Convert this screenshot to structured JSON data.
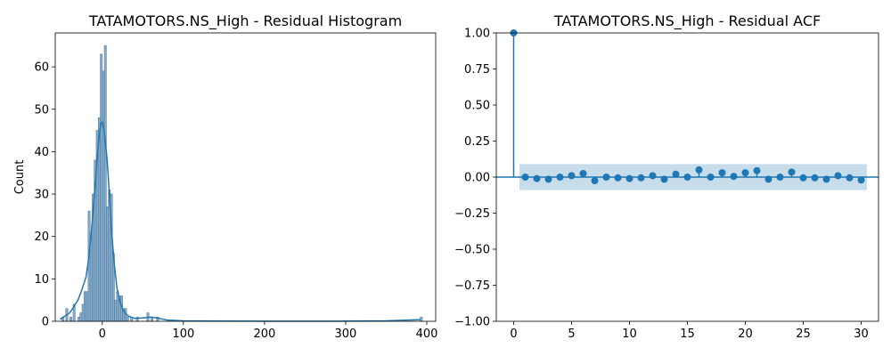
{
  "colors": {
    "bar_fill": "#5e93bd",
    "bar_edge": "#5b7c9a",
    "line": "#1f77b4",
    "band": "#1f77b4",
    "axes": "#000000"
  },
  "chart_data": [
    {
      "type": "bar",
      "subtype": "histogram_with_kde",
      "title": "TATAMOTORS.NS_High - Residual Histogram",
      "xlabel": "",
      "ylabel": "Count",
      "xlim": [
        -58,
        411
      ],
      "ylim": [
        0,
        68
      ],
      "xticks": [
        "0",
        "100",
        "200",
        "300",
        "400"
      ],
      "yticks": [
        "0",
        "10",
        "20",
        "30",
        "40",
        "50",
        "60"
      ],
      "bin_width": 2.5,
      "bins": [
        {
          "x": -50,
          "count": 1
        },
        {
          "x": -45,
          "count": 3
        },
        {
          "x": -40,
          "count": 1
        },
        {
          "x": -36,
          "count": 4
        },
        {
          "x": -30,
          "count": 1
        },
        {
          "x": -27.5,
          "count": 2
        },
        {
          "x": -25,
          "count": 4
        },
        {
          "x": -22.5,
          "count": 7
        },
        {
          "x": -20,
          "count": 7
        },
        {
          "x": -17.5,
          "count": 26
        },
        {
          "x": -15,
          "count": 20
        },
        {
          "x": -12.5,
          "count": 30
        },
        {
          "x": -10,
          "count": 38
        },
        {
          "x": -7.5,
          "count": 45
        },
        {
          "x": -5,
          "count": 48
        },
        {
          "x": -2.5,
          "count": 63
        },
        {
          "x": 0,
          "count": 59
        },
        {
          "x": 2.5,
          "count": 65
        },
        {
          "x": 5,
          "count": 27
        },
        {
          "x": 7.5,
          "count": 31
        },
        {
          "x": 10,
          "count": 30
        },
        {
          "x": 12.5,
          "count": 16
        },
        {
          "x": 15,
          "count": 5
        },
        {
          "x": 17.5,
          "count": 7
        },
        {
          "x": 20,
          "count": 6
        },
        {
          "x": 22.5,
          "count": 6
        },
        {
          "x": 25,
          "count": 3
        },
        {
          "x": 27.5,
          "count": 3
        },
        {
          "x": 30,
          "count": 1
        },
        {
          "x": 35,
          "count": 1
        },
        {
          "x": 42,
          "count": 1
        },
        {
          "x": 55,
          "count": 2
        },
        {
          "x": 60,
          "count": 1
        },
        {
          "x": 67,
          "count": 1
        },
        {
          "x": 392,
          "count": 1
        }
      ],
      "kde": {
        "x": [
          -52,
          -40,
          -30,
          -25,
          -20,
          -17,
          -14,
          -11,
          -8,
          -6,
          -4,
          -2,
          0,
          2,
          4,
          6,
          8,
          10,
          12,
          15,
          18,
          22,
          26,
          30,
          35,
          40,
          50,
          60,
          70,
          80,
          100,
          150,
          200,
          250,
          300,
          350,
          392
        ],
        "y": [
          0.5,
          2.0,
          5.0,
          7.5,
          10.5,
          14.5,
          20,
          27,
          34,
          39,
          43.5,
          46.5,
          47,
          45.5,
          42,
          38,
          32,
          26,
          20,
          13,
          8,
          4.5,
          2.5,
          1.5,
          1.0,
          0.7,
          0.8,
          1.0,
          0.7,
          0.3,
          0.1,
          0.05,
          0.03,
          0.03,
          0.05,
          0.1,
          0.4
        ]
      }
    },
    {
      "type": "scatter",
      "subtype": "acf_stem",
      "title": "TATAMOTORS.NS_High - Residual ACF",
      "xlabel": "",
      "ylabel": "",
      "xlim": [
        -1.5,
        31.5
      ],
      "ylim": [
        -1.0,
        1.0
      ],
      "xticks": [
        "0",
        "5",
        "10",
        "15",
        "20",
        "25",
        "30"
      ],
      "yticks": [
        "−1.00",
        "−0.75",
        "−0.50",
        "−0.25",
        "0.00",
        "0.25",
        "0.50",
        "0.75",
        "1.00"
      ],
      "confidence_band": [
        -0.09,
        0.09
      ],
      "lags": [
        0,
        1,
        2,
        3,
        4,
        5,
        6,
        7,
        8,
        9,
        10,
        11,
        12,
        13,
        14,
        15,
        16,
        17,
        18,
        19,
        20,
        21,
        22,
        23,
        24,
        25,
        26,
        27,
        28,
        29,
        30
      ],
      "values": [
        1.0,
        0.0,
        -0.01,
        -0.015,
        0.0,
        0.01,
        0.025,
        -0.025,
        0.0,
        -0.005,
        -0.01,
        -0.005,
        0.01,
        -0.015,
        0.02,
        0.0,
        0.05,
        0.0,
        0.03,
        0.005,
        0.03,
        0.045,
        -0.015,
        0.0,
        0.035,
        -0.005,
        -0.005,
        -0.015,
        0.01,
        -0.005,
        -0.02
      ]
    }
  ]
}
